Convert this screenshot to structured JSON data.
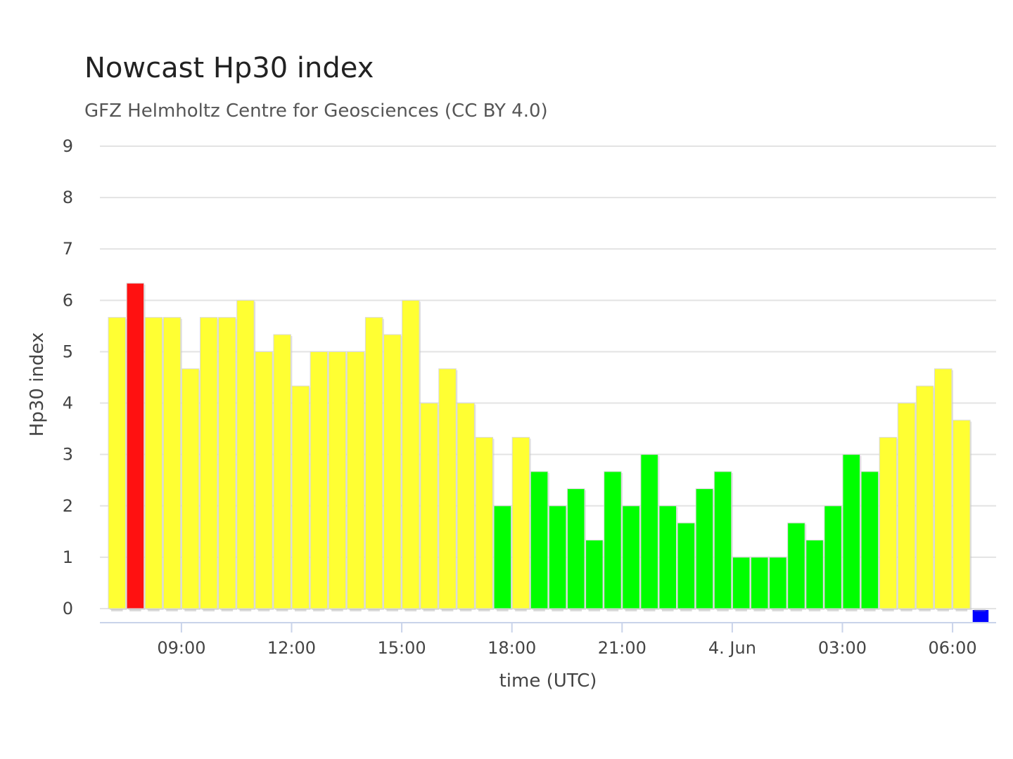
{
  "chart_data": {
    "type": "bar",
    "title": "Nowcast Hp30 index",
    "subtitle": "GFZ Helmholtz Centre for Geosciences (CC BY 4.0)",
    "xlabel": "time (UTC)",
    "ylabel": "Hp30 index",
    "ylim": [
      0,
      9
    ],
    "yticks": [
      "0",
      "1",
      "2",
      "3",
      "4",
      "5",
      "6",
      "7",
      "8",
      "9"
    ],
    "xticks": [
      "09:00",
      "12:00",
      "15:00",
      "18:00",
      "21:00",
      "4. Jun",
      "03:00",
      "06:00"
    ],
    "grid": true,
    "legend": "none",
    "interval": "30 min",
    "colors": {
      "low": "#00ff00",
      "mid": "#ffff33",
      "high": "#ff1111",
      "nowcast": "#0000ff"
    },
    "series": [
      {
        "values": [
          5.667,
          6.333,
          5.667,
          5.667,
          4.667,
          5.667,
          5.667,
          6.0,
          5.0,
          5.333,
          4.333,
          5.0,
          5.0,
          5.0,
          5.667,
          5.333,
          6.0,
          4.0,
          4.667,
          4.0,
          3.333,
          2.0,
          3.333,
          2.667,
          2.0,
          2.333,
          1.333,
          2.667,
          2.0,
          3.0,
          2.0,
          1.667,
          2.333,
          2.667,
          1.0,
          1.0,
          1.0,
          1.667,
          1.333,
          2.0,
          3.0,
          2.667,
          3.333,
          4.0,
          4.333,
          4.667,
          3.667,
          0.0
        ],
        "colors": [
          "mid",
          "high",
          "mid",
          "mid",
          "mid",
          "mid",
          "mid",
          "mid",
          "mid",
          "mid",
          "mid",
          "mid",
          "mid",
          "mid",
          "mid",
          "mid",
          "mid",
          "mid",
          "mid",
          "mid",
          "mid",
          "low",
          "mid",
          "low",
          "low",
          "low",
          "low",
          "low",
          "low",
          "low",
          "low",
          "low",
          "low",
          "low",
          "low",
          "low",
          "low",
          "low",
          "low",
          "low",
          "low",
          "low",
          "mid",
          "mid",
          "mid",
          "mid",
          "mid",
          "nowcast"
        ]
      }
    ]
  }
}
